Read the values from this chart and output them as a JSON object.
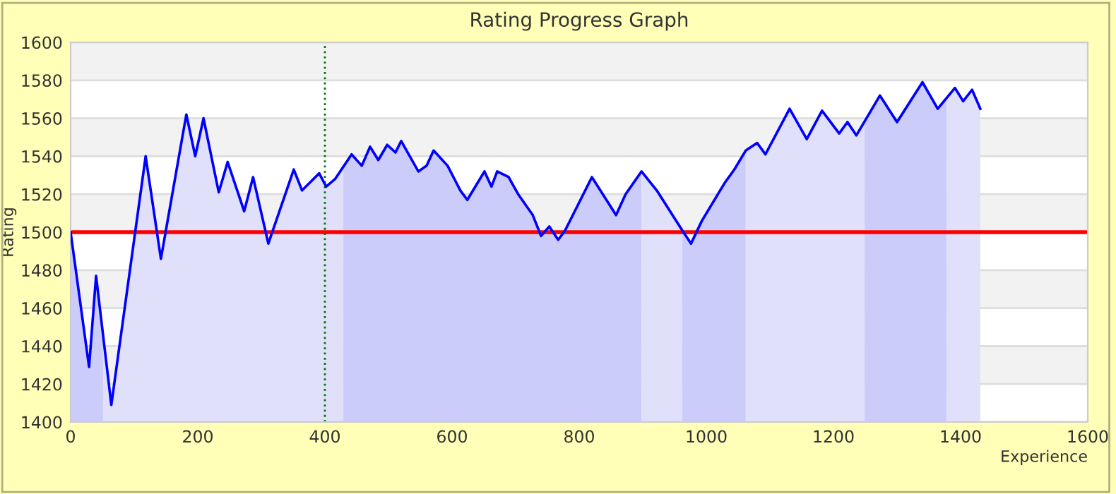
{
  "chart_data": {
    "type": "area",
    "title": "Rating Progress Graph",
    "xlabel": "Experience",
    "ylabel": "Rating",
    "xlim": [
      0,
      1600
    ],
    "ylim": [
      1400,
      1600
    ],
    "xticks": [
      0,
      200,
      400,
      600,
      800,
      1000,
      1200,
      1400,
      1600
    ],
    "yticks": [
      1400,
      1420,
      1440,
      1460,
      1480,
      1500,
      1520,
      1540,
      1560,
      1580,
      1600
    ],
    "grid": "y",
    "legend": false,
    "marker": "none",
    "ref_lines": [
      {
        "axis": "y",
        "value": 1500,
        "color": "#ff0000",
        "line_style": "solid"
      },
      {
        "axis": "x",
        "value": 400,
        "color": "#007700",
        "line_style": "dotted"
      }
    ],
    "series": [
      {
        "type": "area",
        "color": "#ccccfa",
        "x": [
          0,
          29,
          40,
          51
        ],
        "values": [
          1500,
          1429,
          1477,
          1446
        ]
      },
      {
        "type": "area",
        "color": "#e0e0fa",
        "x": [
          51,
          64,
          118,
          142,
          182,
          196,
          209,
          233,
          247,
          273,
          287,
          311,
          351,
          364,
          391,
          402,
          416,
          429
        ],
        "values": [
          1446,
          1409,
          1540,
          1486,
          1562,
          1540,
          1560,
          1521,
          1537,
          1511,
          1529,
          1494,
          1533,
          1522,
          1531,
          1524,
          1528,
          1535
        ]
      },
      {
        "type": "area",
        "color": "#ccccfa",
        "x": [
          429,
          442,
          458,
          471,
          484,
          498,
          511,
          520,
          547,
          560,
          571,
          593,
          613,
          624,
          651,
          662,
          671,
          689,
          704,
          727,
          740,
          753,
          767,
          778,
          820,
          858,
          873,
          898
        ],
        "values": [
          1535,
          1541,
          1535,
          1545,
          1538,
          1546,
          1542,
          1548,
          1532,
          1535,
          1543,
          1535,
          1522,
          1517,
          1532,
          1524,
          1532,
          1529,
          1520,
          1509,
          1498,
          1503,
          1496,
          1501,
          1529,
          1509,
          1520,
          1532
        ]
      },
      {
        "type": "area",
        "color": "#e0e0fa",
        "x": [
          898,
          922,
          962
        ],
        "values": [
          1532,
          1522,
          1501
        ]
      },
      {
        "type": "area",
        "color": "#ccccfa",
        "x": [
          962,
          976,
          993,
          1029,
          1044,
          1062
        ],
        "values": [
          1501,
          1494,
          1506,
          1526,
          1533,
          1543
        ]
      },
      {
        "type": "area",
        "color": "#e0e0fa",
        "x": [
          1062,
          1080,
          1093,
          1131,
          1158,
          1182,
          1209,
          1222,
          1236,
          1249
        ],
        "values": [
          1543,
          1547,
          1541,
          1565,
          1549,
          1564,
          1552,
          1558,
          1551,
          1558
        ]
      },
      {
        "type": "area",
        "color": "#ccccfa",
        "x": [
          1249,
          1273,
          1300,
          1340,
          1364,
          1378
        ],
        "values": [
          1558,
          1572,
          1558,
          1579,
          1565,
          1571
        ]
      },
      {
        "type": "area",
        "color": "#e0e0fa",
        "x": [
          1378,
          1391,
          1404,
          1418,
          1431
        ],
        "values": [
          1571,
          1576,
          1569,
          1575,
          1565
        ]
      },
      {
        "type": "line",
        "color": "#0000ff",
        "line_style": "solid",
        "x": [
          0,
          29,
          40,
          64,
          118,
          142,
          182,
          196,
          209,
          233,
          247,
          273,
          287,
          311,
          351,
          364,
          391,
          402,
          416,
          442,
          458,
          471,
          484,
          498,
          511,
          520,
          547,
          560,
          571,
          593,
          613,
          624,
          651,
          662,
          671,
          689,
          704,
          727,
          740,
          753,
          767,
          778,
          820,
          858,
          873,
          898,
          922,
          962,
          976,
          993,
          1029,
          1044,
          1062,
          1080,
          1093,
          1131,
          1158,
          1182,
          1209,
          1222,
          1236,
          1273,
          1300,
          1340,
          1364,
          1391,
          1404,
          1418,
          1431
        ],
        "values": [
          1500,
          1429,
          1477,
          1409,
          1540,
          1486,
          1562,
          1540,
          1560,
          1521,
          1537,
          1511,
          1529,
          1494,
          1533,
          1522,
          1531,
          1524,
          1528,
          1541,
          1535,
          1545,
          1538,
          1546,
          1542,
          1548,
          1532,
          1535,
          1543,
          1535,
          1522,
          1517,
          1532,
          1524,
          1532,
          1529,
          1520,
          1509,
          1498,
          1503,
          1496,
          1501,
          1529,
          1509,
          1520,
          1532,
          1522,
          1501,
          1494,
          1506,
          1526,
          1533,
          1543,
          1547,
          1541,
          1565,
          1549,
          1564,
          1552,
          1558,
          1551,
          1572,
          1558,
          1579,
          1565,
          1576,
          1569,
          1575,
          1565
        ]
      }
    ]
  }
}
